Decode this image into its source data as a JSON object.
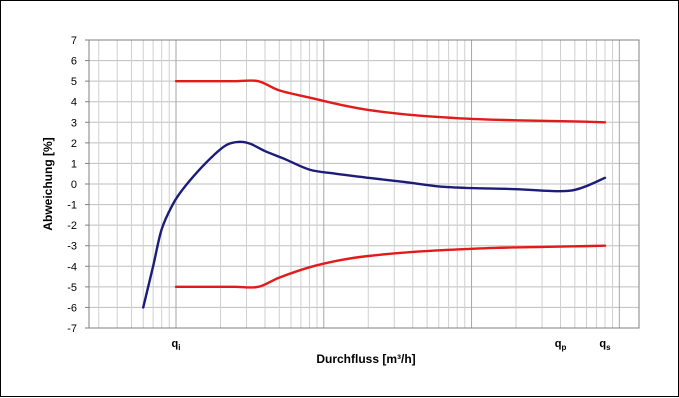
{
  "chart_data": {
    "type": "line",
    "title": "",
    "xlabel": "Durchfluss [m³/h]",
    "ylabel": "Abweichung [%]",
    "x_scale": "log",
    "x_tick_labels": [
      {
        "main": "q",
        "sub": "i",
        "at": 1
      },
      {
        "main": "q",
        "sub": "p",
        "at": 400
      },
      {
        "main": "q",
        "sub": "s",
        "at": 800
      }
    ],
    "ylim": [
      -7,
      7
    ],
    "y_ticks": [
      7,
      6,
      5,
      4,
      3,
      2,
      1,
      0,
      -1,
      -2,
      -3,
      -4,
      -5,
      -6,
      -7
    ],
    "grid": true,
    "series": [
      {
        "color": "#e31a1a",
        "x": [
          1,
          1.6,
          2.5,
          3.6,
          5,
          8,
          13,
          20,
          40,
          80,
          150,
          300,
          500,
          800
        ],
        "y": [
          5,
          5,
          5,
          5,
          4.55,
          4.2,
          3.85,
          3.6,
          3.35,
          3.2,
          3.12,
          3.07,
          3.04,
          3.0
        ]
      },
      {
        "color": "#e31a1a",
        "x": [
          1,
          1.6,
          2.5,
          3.6,
          5,
          8,
          13,
          20,
          40,
          80,
          150,
          300,
          500,
          800
        ],
        "y": [
          -5,
          -5,
          -5,
          -5,
          -4.55,
          -4.05,
          -3.7,
          -3.5,
          -3.3,
          -3.18,
          -3.1,
          -3.06,
          -3.03,
          -3.0
        ]
      },
      {
        "color": "#1c1c7a",
        "x": [
          0.6,
          0.7,
          0.8,
          0.95,
          1.1,
          1.4,
          1.8,
          2.2,
          2.7,
          3.2,
          4.0,
          5.5,
          8,
          12,
          20,
          35,
          60,
          100,
          200,
          400,
          550,
          800
        ],
        "y": [
          -6.0,
          -4.0,
          -2.2,
          -1.0,
          -0.3,
          0.6,
          1.4,
          1.9,
          2.05,
          1.95,
          1.6,
          1.2,
          0.7,
          0.5,
          0.3,
          0.1,
          -0.12,
          -0.2,
          -0.25,
          -0.35,
          -0.2,
          0.3
        ]
      }
    ]
  }
}
